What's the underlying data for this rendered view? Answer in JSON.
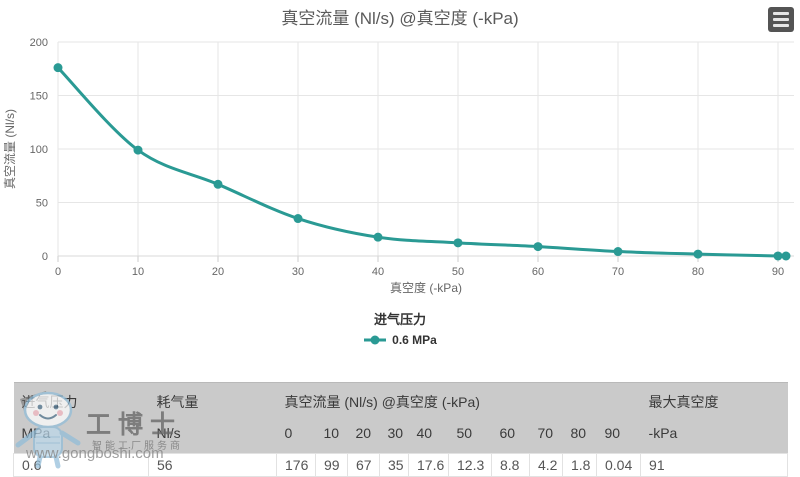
{
  "chart": {
    "title": "真空流量 (Nl/s) @真空度 (-kPa)",
    "y_axis_title": "真空流量 (Nl/s)",
    "x_axis_title": "真空度 (-kPa)",
    "legend_title": "进气压力",
    "legend_item": "0.6 MPa"
  },
  "chart_data": {
    "type": "line",
    "title": "真空流量 (Nl/s) @真空度 (-kPa)",
    "xlabel": "真空度 (-kPa)",
    "ylabel": "真空流量 (Nl/s)",
    "xlim": [
      0,
      92
    ],
    "ylim": [
      0,
      200
    ],
    "xticks": [
      0,
      10,
      20,
      30,
      40,
      50,
      60,
      70,
      80,
      90
    ],
    "yticks": [
      0,
      50,
      100,
      150,
      200
    ],
    "grid": true,
    "legend_position": "bottom",
    "legend_title": "进气压力",
    "series": [
      {
        "name": "0.6 MPa",
        "points": [
          [
            0,
            176
          ],
          [
            10,
            99
          ],
          [
            20,
            67
          ],
          [
            30,
            35
          ],
          [
            40,
            17.6
          ],
          [
            50,
            12.3
          ],
          [
            60,
            8.8
          ],
          [
            70,
            4.2
          ],
          [
            80,
            1.8
          ],
          [
            90,
            0.04
          ],
          [
            91,
            0
          ]
        ]
      }
    ]
  },
  "colors": {
    "series_teal": "#2a9a94",
    "grid_line": "#e6e6e6",
    "tick_mark": "#cccccc",
    "axis_label": "#666666",
    "table_header_bg": "#cacaca"
  },
  "icons": {
    "export_menu": "hamburger-menu-icon",
    "legend_marker": "line-dot-marker-icon",
    "watermark_mascot": "gongboshi-mascot-icon"
  },
  "table": {
    "header_row1": {
      "inlet_pressure": "进气压力",
      "air_consumption": "耗气量",
      "vacuum_flow": "真空流量 (Nl/s) @真空度 (-kPa)",
      "max_vacuum": "最大真空度"
    },
    "header_row2": [
      "MPa",
      "Nl/s",
      "0",
      "10",
      "20",
      "30",
      "40",
      "50",
      "60",
      "70",
      "80",
      "90",
      "-kPa"
    ],
    "row": [
      "0.6",
      "56",
      "176",
      "99",
      "67",
      "35",
      "17.6",
      "12.3",
      "8.8",
      "4.2",
      "1.8",
      "0.04",
      "91"
    ]
  },
  "watermark": {
    "brand": "工博士",
    "tagline": "智能工厂服务商",
    "url": "www.gongboshi.com"
  }
}
